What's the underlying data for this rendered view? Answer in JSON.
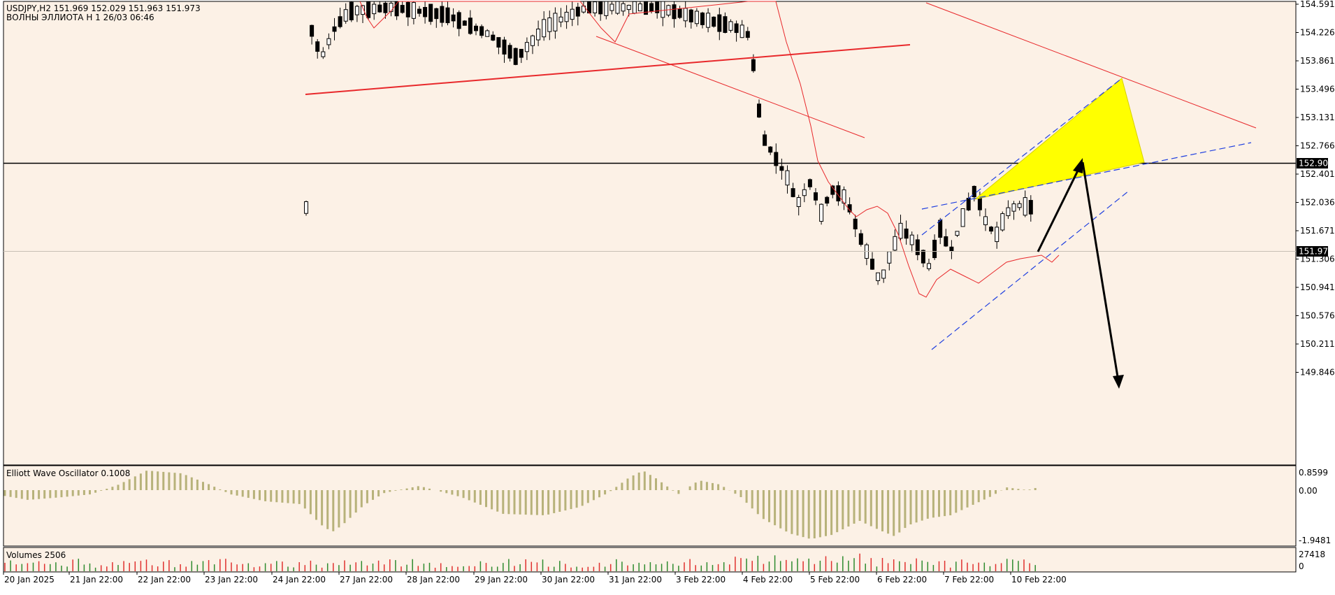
{
  "header": {
    "symbol_line": "USDJPY,H2  151.969 152.029 151.963 151.973",
    "template_line": "ВОЛНЫ ЭЛЛИОТА Н 1 26/03 06:46"
  },
  "colors": {
    "background": "#fcf1e6",
    "bull_candle": "#ffffff",
    "bear_candle": "#000000",
    "ma": "#e8282b",
    "trendline": "#e8282b",
    "channel": "#2040e0",
    "triangle": "#ffff00",
    "arrow": "#000000",
    "osc": "#b7b27a",
    "vol_up": "#2e8b2e",
    "vol_down": "#e0302e"
  },
  "price_axis": {
    "ticks": [
      "154.591",
      "154.226",
      "153.861",
      "153.496",
      "153.131",
      "152.766",
      "152.401",
      "152.036",
      "151.671",
      "151.306",
      "150.941",
      "150.576",
      "150.211",
      "149.846"
    ],
    "hline_label": "152.900",
    "bid_label": "151.973"
  },
  "time_axis": {
    "labels": [
      "20 Jan 2025",
      "21 Jan 22:00",
      "22 Jan 22:00",
      "23 Jan 22:00",
      "24 Jan 22:00",
      "27 Jan 22:00",
      "28 Jan 22:00",
      "29 Jan 22:00",
      "30 Jan 22:00",
      "31 Jan 22:00",
      "3 Feb 22:00",
      "4 Feb 22:00",
      "5 Feb 22:00",
      "6 Feb 22:00",
      "7 Feb 22:00",
      "10 Feb 22:00"
    ]
  },
  "oscillator": {
    "title": "Elliott Wave Oscillator 0.1008",
    "ticks": [
      "0.8599",
      "0.00",
      "-1.9481"
    ]
  },
  "volumes": {
    "title": "Volumes 2506",
    "ticks": [
      "27418",
      "0"
    ]
  },
  "chart_data": {
    "type": "candlestick",
    "symbol": "USDJPY",
    "timeframe": "H2",
    "ylim": [
      149.75,
      154.6
    ],
    "last_price": 151.973,
    "horizontal_level": 152.9,
    "candles_visible": [
      {
        "time": "24 Jan",
        "o": 154.55,
        "h": 154.62,
        "l": 153.65,
        "c": 153.8
      },
      {
        "time": "27 Jan",
        "o": 154.3,
        "h": 154.55,
        "l": 153.82,
        "c": 154.1
      },
      {
        "time": "28 Jan",
        "o": 154.45,
        "h": 154.62,
        "l": 154.3,
        "c": 154.5
      },
      {
        "time": "29 Jan",
        "o": 154.5,
        "h": 154.62,
        "l": 153.9,
        "c": 154.05
      },
      {
        "time": "30 Jan",
        "o": 153.9,
        "h": 154.62,
        "l": 153.95,
        "c": 154.3
      },
      {
        "time": "31 Jan",
        "o": 154.55,
        "h": 154.62,
        "l": 154.0,
        "c": 154.55
      },
      {
        "time": "3 Feb",
        "o": 154.55,
        "h": 154.62,
        "l": 154.2,
        "c": 154.25
      },
      {
        "time": "4 Feb",
        "o": 154.0,
        "h": 154.1,
        "l": 152.45,
        "c": 152.7
      },
      {
        "time": "5 Feb",
        "o": 152.4,
        "h": 152.85,
        "l": 151.5,
        "c": 151.9
      },
      {
        "time": "6 Feb",
        "o": 151.7,
        "h": 151.9,
        "l": 150.95,
        "c": 151.2
      },
      {
        "time": "7 Feb",
        "o": 151.1,
        "h": 152.5,
        "l": 150.95,
        "c": 152.0
      },
      {
        "time": "10 Feb",
        "o": 151.7,
        "h": 152.05,
        "l": 151.6,
        "c": 151.973
      }
    ],
    "annotations": [
      "yellow triangle target zone near 153.8",
      "arrow up to 152.9",
      "arrow down to 150.5",
      "ascending blue dashed channel",
      "red trendlines"
    ],
    "grid": false
  }
}
